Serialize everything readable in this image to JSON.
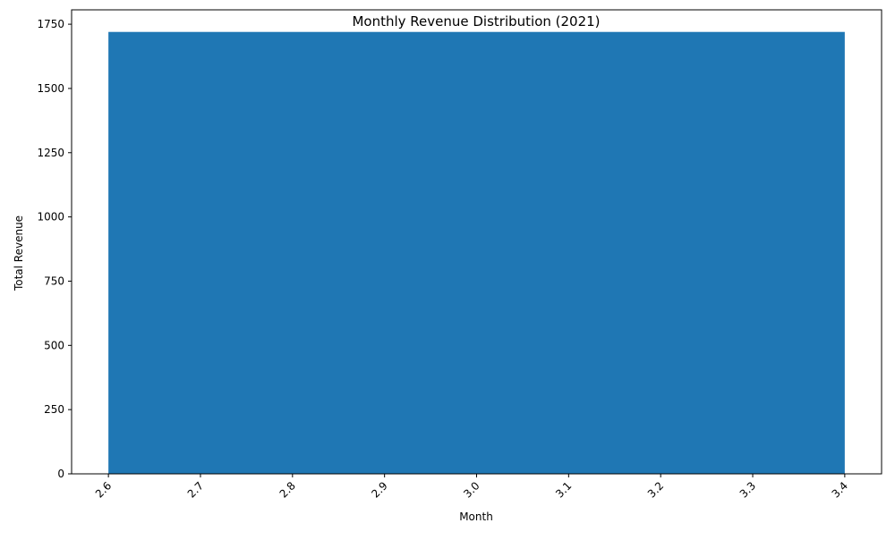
{
  "chart_data": {
    "type": "bar",
    "title": "Monthly Revenue Distribution (2021)",
    "xlabel": "Month",
    "ylabel": "Total Revenue",
    "xlim": [
      2.56,
      3.44
    ],
    "ylim": [
      0,
      1806
    ],
    "x_ticks": [
      "2.6",
      "2.7",
      "2.8",
      "2.9",
      "3.0",
      "3.1",
      "3.2",
      "3.3",
      "3.4"
    ],
    "y_ticks": [
      0,
      250,
      500,
      750,
      1000,
      1250,
      1500,
      1750
    ],
    "bars": [
      {
        "x_start": 2.6,
        "x_end": 3.4,
        "value": 1720
      }
    ],
    "bar_color": "#1f77b4",
    "grid": false,
    "legend": "none"
  }
}
